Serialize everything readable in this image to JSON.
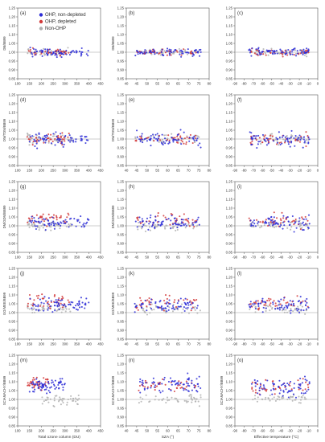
{
  "legend": {
    "entries": [
      {
        "label": "OHP, non-depleted",
        "color": "#2b2bd6"
      },
      {
        "label": "OHP, depleted",
        "color": "#d23a3a"
      },
      {
        "label": "Non-OHP",
        "color": "#b0b0b0"
      }
    ]
  },
  "columns": [
    {
      "xlabel": "Total ozone column (DU)",
      "xlim": [
        100,
        450
      ],
      "ticks": [
        100,
        150,
        200,
        250,
        300,
        350,
        400,
        450
      ]
    },
    {
      "xlabel": "SZA (°)",
      "xlim": [
        40,
        80
      ],
      "ticks": [
        40,
        45,
        50,
        55,
        60,
        65,
        70,
        75,
        80
      ]
    },
    {
      "xlabel": "Effective temperature (°C)",
      "xlim": [
        -90,
        0
      ],
      "ticks": [
        -90,
        -80,
        -70,
        -60,
        -50,
        -40,
        -30,
        -20,
        -10,
        0
      ]
    }
  ],
  "rows": [
    {
      "ylabel": "DB/BB99",
      "ylim": [
        0.85,
        1.25
      ],
      "ticks": [
        "0.85",
        "0.90",
        "0.95",
        "1.00",
        "1.05",
        "1.10",
        "1.15",
        "1.20",
        "1.25"
      ]
    },
    {
      "ylabel": "DM/TDM/BB99",
      "ylim": [
        0.85,
        1.25
      ],
      "ticks": [
        "0.85",
        "0.90",
        "0.95",
        "1.00",
        "1.05",
        "1.10",
        "1.15",
        "1.20",
        "1.25"
      ]
    },
    {
      "ylabel": "DM/GDM/BB99",
      "ylim": [
        0.85,
        1.25
      ],
      "ticks": [
        "0.85",
        "0.90",
        "0.95",
        "1.00",
        "1.05",
        "1.10",
        "1.15",
        "1.20",
        "1.25"
      ]
    },
    {
      "ylabel": "GO/MEE/BB99",
      "ylim": [
        0.85,
        1.25
      ],
      "ticks": [
        "0.85",
        "0.90",
        "0.95",
        "1.00",
        "1.05",
        "1.10",
        "1.15",
        "1.20",
        "1.25"
      ]
    },
    {
      "ylabel": "SCIAMACHY/BB99",
      "ylim": [
        0.85,
        1.25
      ],
      "ticks": [
        "0.85",
        "0.90",
        "0.95",
        "1.00",
        "1.05",
        "1.10",
        "1.15",
        "1.20",
        "1.25"
      ]
    }
  ],
  "panel_labels": [
    "(a)",
    "(b)",
    "(c)",
    "(d)",
    "(e)",
    "(f)",
    "(g)",
    "(h)",
    "(i)",
    "(j)",
    "(k)",
    "(l)",
    "(m)",
    "(n)",
    "(o)"
  ],
  "chart_data": {
    "type": "scatter",
    "layout": "5 rows x 3 columns of panels",
    "reference_line_y": 1.0,
    "series": [
      {
        "name": "OHP, non-depleted",
        "color": "#2b2bd6"
      },
      {
        "name": "OHP, depleted",
        "color": "#d23a3a"
      },
      {
        "name": "Non-OHP",
        "color": "#b0b0b0"
      }
    ],
    "panels": [
      {
        "label": "(a)",
        "ylabel": "DB/BB99",
        "xlabel": "Total ozone column (DU)",
        "x_range": [
          100,
          450
        ],
        "ylim": [
          0.85,
          1.25
        ],
        "clusters": [
          {
            "series": "OHP, non-depleted",
            "x_range": [
              150,
              400
            ],
            "y_center": 1.0,
            "y_spread": 0.025
          },
          {
            "series": "OHP, depleted",
            "x_range": [
              140,
              320
            ],
            "y_center": 1.0,
            "y_spread": 0.02
          },
          {
            "series": "Non-OHP",
            "x_range": [
              140,
              330
            ],
            "y_center": 1.0,
            "y_spread": 0.02
          }
        ]
      },
      {
        "label": "(b)",
        "ylabel": "DB/BB99",
        "xlabel": "SZA (°)",
        "x_range": [
          40,
          80
        ],
        "ylim": [
          0.85,
          1.25
        ],
        "clusters": [
          {
            "series": "OHP, non-depleted",
            "x_range": [
              44,
              76
            ],
            "y_center": 1.0,
            "y_spread": 0.025
          },
          {
            "series": "OHP, depleted",
            "x_range": [
              44,
              74
            ],
            "y_center": 1.0,
            "y_spread": 0.02
          },
          {
            "series": "Non-OHP",
            "x_range": [
              44,
              76
            ],
            "y_center": 1.0,
            "y_spread": 0.02
          }
        ]
      },
      {
        "label": "(c)",
        "ylabel": "",
        "xlabel": "Effective temperature (°C)",
        "x_range": [
          -90,
          0
        ],
        "ylim": [
          0.85,
          1.25
        ],
        "clusters": [
          {
            "series": "OHP, non-depleted",
            "x_range": [
              -75,
              -8
            ],
            "y_center": 1.0,
            "y_spread": 0.025
          },
          {
            "series": "OHP, depleted",
            "x_range": [
              -75,
              -10
            ],
            "y_center": 1.0,
            "y_spread": 0.02
          },
          {
            "series": "Non-OHP",
            "x_range": [
              -75,
              -10
            ],
            "y_center": 1.0,
            "y_spread": 0.02
          }
        ]
      },
      {
        "label": "(d)",
        "ylabel": "DM/TDM/BB99",
        "xlabel": "Total ozone column (DU)",
        "x_range": [
          100,
          450
        ],
        "ylim": [
          0.85,
          1.25
        ],
        "clusters": [
          {
            "series": "OHP, non-depleted",
            "x_range": [
              150,
              400
            ],
            "y_center": 1.0,
            "y_spread": 0.04
          },
          {
            "series": "OHP, depleted",
            "x_range": [
              140,
              320
            ],
            "y_center": 1.0,
            "y_spread": 0.035
          },
          {
            "series": "Non-OHP",
            "x_range": [
              140,
              330
            ],
            "y_center": 1.0,
            "y_spread": 0.03
          }
        ]
      },
      {
        "label": "(e)",
        "ylabel": "DM/TDM/BB99",
        "xlabel": "SZA (°)",
        "x_range": [
          40,
          80
        ],
        "ylim": [
          0.85,
          1.25
        ],
        "clusters": [
          {
            "series": "OHP, non-depleted",
            "x_range": [
              44,
              76
            ],
            "y_center": 1.0,
            "y_spread": 0.04
          },
          {
            "series": "OHP, depleted",
            "x_range": [
              44,
              74
            ],
            "y_center": 1.0,
            "y_spread": 0.035
          },
          {
            "series": "Non-OHP",
            "x_range": [
              44,
              76
            ],
            "y_center": 1.0,
            "y_spread": 0.03
          }
        ]
      },
      {
        "label": "(f)",
        "ylabel": "",
        "xlabel": "Effective temperature (°C)",
        "x_range": [
          -90,
          0
        ],
        "ylim": [
          0.85,
          1.25
        ],
        "clusters": [
          {
            "series": "OHP, non-depleted",
            "x_range": [
              -75,
              -8
            ],
            "y_center": 1.0,
            "y_spread": 0.04
          },
          {
            "series": "OHP, depleted",
            "x_range": [
              -75,
              -10
            ],
            "y_center": 1.0,
            "y_spread": 0.035
          },
          {
            "series": "Non-OHP",
            "x_range": [
              -75,
              -10
            ],
            "y_center": 1.0,
            "y_spread": 0.03
          }
        ]
      },
      {
        "label": "(g)",
        "ylabel": "DM/GDM/BB99",
        "xlabel": "Total ozone column (DU)",
        "x_range": [
          100,
          450
        ],
        "ylim": [
          0.85,
          1.25
        ],
        "clusters": [
          {
            "series": "OHP, non-depleted",
            "x_range": [
              150,
              400
            ],
            "y_center": 1.02,
            "y_spread": 0.04
          },
          {
            "series": "OHP, depleted",
            "x_range": [
              140,
              320
            ],
            "y_center": 1.04,
            "y_spread": 0.04
          },
          {
            "series": "Non-OHP",
            "x_range": [
              140,
              330
            ],
            "y_center": 1.0,
            "y_spread": 0.03
          }
        ]
      },
      {
        "label": "(h)",
        "ylabel": "DM/GDM/BB99",
        "xlabel": "SZA (°)",
        "x_range": [
          40,
          80
        ],
        "ylim": [
          0.85,
          1.25
        ],
        "clusters": [
          {
            "series": "OHP, non-depleted",
            "x_range": [
              44,
              76
            ],
            "y_center": 1.02,
            "y_spread": 0.04
          },
          {
            "series": "OHP, depleted",
            "x_range": [
              44,
              74
            ],
            "y_center": 1.03,
            "y_spread": 0.04
          },
          {
            "series": "Non-OHP",
            "x_range": [
              44,
              76
            ],
            "y_center": 1.0,
            "y_spread": 0.03
          }
        ]
      },
      {
        "label": "(i)",
        "ylabel": "",
        "xlabel": "Effective temperature (°C)",
        "x_range": [
          -90,
          0
        ],
        "ylim": [
          0.85,
          1.25
        ],
        "clusters": [
          {
            "series": "OHP, non-depleted",
            "x_range": [
              -75,
              -8
            ],
            "y_center": 1.02,
            "y_spread": 0.04
          },
          {
            "series": "OHP, depleted",
            "x_range": [
              -75,
              -10
            ],
            "y_center": 1.03,
            "y_spread": 0.04
          },
          {
            "series": "Non-OHP",
            "x_range": [
              -75,
              -10
            ],
            "y_center": 1.0,
            "y_spread": 0.03
          }
        ]
      },
      {
        "label": "(j)",
        "ylabel": "GO/MEE/BB99",
        "xlabel": "Total ozone column (DU)",
        "x_range": [
          100,
          450
        ],
        "ylim": [
          0.85,
          1.25
        ],
        "clusters": [
          {
            "series": "OHP, non-depleted",
            "x_range": [
              150,
              400
            ],
            "y_center": 1.04,
            "y_spread": 0.04
          },
          {
            "series": "OHP, depleted",
            "x_range": [
              140,
              320
            ],
            "y_center": 1.06,
            "y_spread": 0.04
          },
          {
            "series": "Non-OHP",
            "x_range": [
              140,
              330
            ],
            "y_center": 1.02,
            "y_spread": 0.03
          }
        ]
      },
      {
        "label": "(k)",
        "ylabel": "GO/MEE/BB99",
        "xlabel": "SZA (°)",
        "x_range": [
          40,
          80
        ],
        "ylim": [
          0.85,
          1.25
        ],
        "clusters": [
          {
            "series": "OHP, non-depleted",
            "x_range": [
              44,
              76
            ],
            "y_center": 1.04,
            "y_spread": 0.04
          },
          {
            "series": "OHP, depleted",
            "x_range": [
              44,
              74
            ],
            "y_center": 1.05,
            "y_spread": 0.04
          },
          {
            "series": "Non-OHP",
            "x_range": [
              44,
              76
            ],
            "y_center": 1.02,
            "y_spread": 0.03
          }
        ]
      },
      {
        "label": "(l)",
        "ylabel": "",
        "xlabel": "Effective temperature (°C)",
        "x_range": [
          -90,
          0
        ],
        "ylim": [
          0.85,
          1.25
        ],
        "clusters": [
          {
            "series": "OHP, non-depleted",
            "x_range": [
              -75,
              -8
            ],
            "y_center": 1.04,
            "y_spread": 0.04
          },
          {
            "series": "OHP, depleted",
            "x_range": [
              -75,
              -10
            ],
            "y_center": 1.05,
            "y_spread": 0.04
          },
          {
            "series": "Non-OHP",
            "x_range": [
              -75,
              -10
            ],
            "y_center": 1.02,
            "y_spread": 0.03
          }
        ]
      },
      {
        "label": "(m)",
        "ylabel": "SCIAMACHY/BB99",
        "xlabel": "Total ozone column (DU)",
        "x_range": [
          100,
          450
        ],
        "ylim": [
          0.85,
          1.25
        ],
        "clusters": [
          {
            "series": "OHP, non-depleted",
            "x_range": [
              150,
              300
            ],
            "y_center": 1.08,
            "y_spread": 0.05
          },
          {
            "series": "OHP, depleted",
            "x_range": [
              140,
              230
            ],
            "y_center": 1.09,
            "y_spread": 0.04
          },
          {
            "series": "Non-OHP",
            "x_range": [
              200,
              360
            ],
            "y_center": 1.0,
            "y_spread": 0.03
          }
        ]
      },
      {
        "label": "(n)",
        "ylabel": "SCIAMACHY/BB99",
        "xlabel": "SZA (°)",
        "x_range": [
          40,
          80
        ],
        "ylim": [
          0.85,
          1.25
        ],
        "clusters": [
          {
            "series": "OHP, non-depleted",
            "x_range": [
              46,
              76
            ],
            "y_center": 1.08,
            "y_spread": 0.05
          },
          {
            "series": "OHP, depleted",
            "x_range": [
              46,
              74
            ],
            "y_center": 1.08,
            "y_spread": 0.04
          },
          {
            "series": "Non-OHP",
            "x_range": [
              46,
              76
            ],
            "y_center": 1.0,
            "y_spread": 0.03
          }
        ]
      },
      {
        "label": "(o)",
        "ylabel": "SCIAMACHY/BB99",
        "xlabel": "Effective temperature (°C)",
        "x_range": [
          -90,
          0
        ],
        "ylim": [
          0.85,
          1.25
        ],
        "clusters": [
          {
            "series": "OHP, non-depleted",
            "x_range": [
              -72,
              -8
            ],
            "y_center": 1.07,
            "y_spread": 0.05
          },
          {
            "series": "OHP, depleted",
            "x_range": [
              -72,
              -10
            ],
            "y_center": 1.07,
            "y_spread": 0.04
          },
          {
            "series": "Non-OHP",
            "x_range": [
              -72,
              -10
            ],
            "y_center": 1.0,
            "y_spread": 0.03
          }
        ]
      }
    ]
  }
}
